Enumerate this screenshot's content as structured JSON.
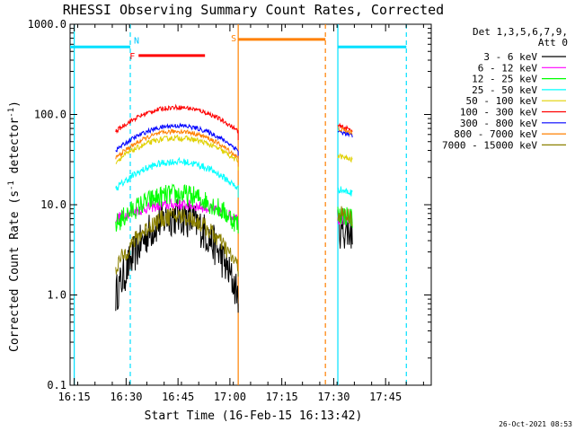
{
  "chart_data": {
    "type": "line",
    "title": "RHESSI Observing Summary Count Rates, Corrected",
    "xlabel": "Start Time (16-Feb-15 16:13:42)",
    "ylabel_main": "Corrected Count Rate (s",
    "ylabel_sup1": "-1",
    "ylabel_mid": " detector",
    "ylabel_sup2": "-1",
    "ylabel_end": ")",
    "yscale": "log",
    "ylim": [
      0.1,
      1000
    ],
    "xlim_minutes": [
      16.23,
      17.97
    ],
    "x_ticks": [
      {
        "label": "16:15",
        "value": 16.25
      },
      {
        "label": "16:30",
        "value": 16.5
      },
      {
        "label": "16:45",
        "value": 16.75
      },
      {
        "label": "17:00",
        "value": 17.0
      },
      {
        "label": "17:15",
        "value": 17.25
      },
      {
        "label": "17:30",
        "value": 17.5
      },
      {
        "label": "17:45",
        "value": 17.75
      }
    ],
    "y_ticks": [
      {
        "label": "1000.0",
        "value": 1000
      },
      {
        "label": "100.0",
        "value": 100
      },
      {
        "label": "10.0",
        "value": 10
      },
      {
        "label": "1.0",
        "value": 1
      },
      {
        "label": "0.1",
        "value": 0.1
      }
    ],
    "legend_header": [
      "Det 1,3,5,6,7,9,",
      "Att 0"
    ],
    "legend_position": "right",
    "flags": [
      {
        "label": "N",
        "color": "#00c8ff",
        "start": 16.52,
        "end": 16.52,
        "level": 560
      },
      {
        "label": "F",
        "color": "#ff0000",
        "start": 16.56,
        "end": 16.88,
        "level": 450
      },
      {
        "label": "S",
        "color": "#ff8000",
        "start": 17.04,
        "end": 17.46,
        "level": 680
      }
    ],
    "night_bars": [
      {
        "color": "#00e0ff",
        "start": 16.23,
        "end": 16.52,
        "level": 560
      },
      {
        "color": "#00e0ff",
        "start": 17.52,
        "end": 17.85,
        "level": 560
      }
    ],
    "vertical_lines": [
      {
        "x": 16.25,
        "color": "#00e0ff",
        "style": "solid"
      },
      {
        "x": 16.52,
        "color": "#00e0ff",
        "style": "dashed"
      },
      {
        "x": 17.04,
        "color": "#ff8000",
        "style": "solid"
      },
      {
        "x": 17.46,
        "color": "#ff8000",
        "style": "dashed"
      },
      {
        "x": 17.52,
        "color": "#00e0ff",
        "style": "solid"
      },
      {
        "x": 17.85,
        "color": "#00e0ff",
        "style": "dashed"
      }
    ],
    "series": [
      {
        "name": "3 - 6 keV",
        "color": "#000000",
        "peak": 7.5,
        "edge": 1.0,
        "noise": 0.22,
        "seg2": 5.5
      },
      {
        "name": "6 - 12 keV",
        "color": "#ff00ff",
        "peak": 10,
        "edge": 7.0,
        "noise": 0.06,
        "seg2": 7.0
      },
      {
        "name": "12 - 25 keV",
        "color": "#00ff00",
        "peak": 13,
        "edge": 6.0,
        "noise": 0.12,
        "seg2": 8.0
      },
      {
        "name": "25 - 50 keV",
        "color": "#00ffff",
        "peak": 30,
        "edge": 15,
        "noise": 0.04,
        "seg2": 15
      },
      {
        "name": "50 - 100 keV",
        "color": "#e0d000",
        "peak": 55,
        "edge": 30,
        "noise": 0.03,
        "seg2": 35
      },
      {
        "name": "100 - 300 keV",
        "color": "#ff0000",
        "peak": 120,
        "edge": 65,
        "noise": 0.025,
        "seg2": 75
      },
      {
        "name": "300 - 800 keV",
        "color": "#0000ff",
        "peak": 75,
        "edge": 40,
        "noise": 0.025,
        "seg2": 65
      },
      {
        "name": "800 - 7000 keV",
        "color": "#ff8000",
        "peak": 65,
        "edge": 33,
        "noise": 0.025,
        "seg2": 70
      },
      {
        "name": "7000 - 15000 keV",
        "color": "#8b8000",
        "peak": 7.5,
        "edge": 2.0,
        "noise": 0.1,
        "seg2": 8.0
      }
    ],
    "segments": [
      {
        "start": 16.45,
        "end": 17.04
      },
      {
        "start": 17.52,
        "end": 17.59
      }
    ],
    "timestamp": "26-Oct-2021 08:53"
  }
}
